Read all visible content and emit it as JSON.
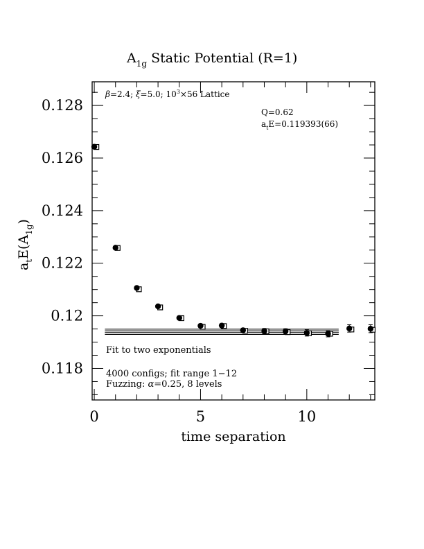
{
  "chart_data": {
    "type": "scatter",
    "title_main": "A",
    "title_sub": "1g",
    "title_rest": " Static Potential (R=1)",
    "xlabel": "time separation",
    "ylabel_main": "a",
    "ylabel_t": "t",
    "ylabel_e": "E(A",
    "ylabel_sub": "1g",
    "ylabel_close": ")",
    "xlim": [
      -0.1,
      13.2
    ],
    "ylim": [
      0.1168,
      0.1289
    ],
    "x_ticks": [
      {
        "v": 0,
        "label": "0"
      },
      {
        "v": 5,
        "label": "5"
      },
      {
        "v": 10,
        "label": "10"
      }
    ],
    "y_ticks": [
      {
        "v": 0.118,
        "label": "0.118"
      },
      {
        "v": 0.12,
        "label": "0.12"
      },
      {
        "v": 0.122,
        "label": "0.122"
      },
      {
        "v": 0.124,
        "label": "0.124"
      },
      {
        "v": 0.126,
        "label": "0.126"
      },
      {
        "v": 0.128,
        "label": "0.128"
      }
    ],
    "annotations": {
      "params_beta": "β",
      "params_a": "=2.4; ",
      "params_xi": "ξ",
      "params_b": "=5.0; 10",
      "params_sup": "3",
      "params_c": "×56 Lattice",
      "q_value": "Q=0.62",
      "energy_a": "a",
      "energy_sub": "t",
      "energy_b": "E=0.119393(66)",
      "fit_label": "Fit to two exponentials",
      "configs": "4000 configs; fit range 1−12",
      "fuzzing_a": "Fuzzing: ",
      "fuzzing_alpha": "α",
      "fuzzing_b": "=0.25, 8 levels"
    },
    "series": [
      {
        "marker": "filled-circle",
        "x": [
          0,
          1,
          2,
          3,
          4,
          5,
          6,
          7,
          8,
          9,
          10,
          11,
          12,
          13
        ],
        "y": [
          0.12643,
          0.12259,
          0.12106,
          0.12036,
          0.11992,
          0.11962,
          0.11963,
          0.11945,
          0.11942,
          0.11941,
          0.11935,
          0.11932,
          0.11952,
          0.11951
        ],
        "err": [
          3e-05,
          4e-05,
          5e-05,
          6e-05,
          6e-05,
          7e-05,
          7e-05,
          8e-05,
          0.0001,
          0.0001,
          0.00012,
          0.00012,
          0.00014,
          0.00015
        ]
      },
      {
        "marker": "open-square",
        "x": [
          0.1,
          1.1,
          2.1,
          3.1,
          4.1,
          5.1,
          6.1,
          7.1,
          8.1,
          9.1,
          10.1,
          11.1,
          12.1,
          13.1
        ],
        "y": [
          0.12642,
          0.12258,
          0.12101,
          0.12032,
          0.11991,
          0.11958,
          0.11961,
          0.11943,
          0.11941,
          0.11938,
          0.11934,
          0.11932,
          0.11948,
          0.11947
        ]
      }
    ],
    "fit": {
      "x_range": [
        0.5,
        11.5
      ],
      "lines": [
        0.119459,
        0.119393,
        0.119327
      ]
    }
  }
}
